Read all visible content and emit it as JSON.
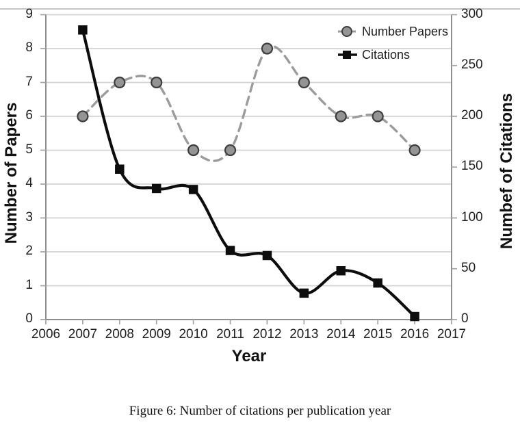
{
  "figure": {
    "caption": "Figure 6: Number of citations per publication year"
  },
  "chart_data": {
    "type": "line",
    "title": "",
    "xlabel": "Year",
    "x": [
      2007,
      2008,
      2009,
      2010,
      2011,
      2012,
      2013,
      2014,
      2015,
      2016
    ],
    "x_ticks": [
      2006,
      2007,
      2008,
      2009,
      2010,
      2011,
      2012,
      2013,
      2014,
      2015,
      2016,
      2017
    ],
    "xlim": [
      2006,
      2017
    ],
    "grid": true,
    "legend": {
      "position": "top-right",
      "items": [
        "Number Papers",
        "Citations"
      ]
    },
    "left_axis": {
      "label": "Number of Papers",
      "lim": [
        0,
        9
      ],
      "ticks": [
        0,
        1,
        2,
        3,
        4,
        5,
        6,
        7,
        8,
        9
      ]
    },
    "right_axis": {
      "label": "Numbef of Citations",
      "lim": [
        0,
        300
      ],
      "ticks": [
        0,
        50,
        100,
        150,
        200,
        250,
        300
      ]
    },
    "series": [
      {
        "name": "Number Papers",
        "axis": "left",
        "line": "dashed",
        "smooth": true,
        "marker": "circle",
        "color": "#9b9b9b",
        "marker_fill": "#949494",
        "marker_stroke": "#3d3d3d",
        "values": [
          6,
          7,
          7,
          5,
          5,
          8,
          7,
          6,
          6,
          5
        ]
      },
      {
        "name": "Citations",
        "axis": "right",
        "line": "solid",
        "smooth": true,
        "marker": "square",
        "color": "#0d0d0d",
        "marker_fill": "#0d0d0d",
        "marker_stroke": "#0d0d0d",
        "values": [
          285,
          148,
          129,
          128,
          68,
          63,
          26,
          48,
          36,
          3
        ]
      }
    ],
    "style": {
      "gridline_color": "#d3d3d3",
      "axis_color": "#8f8f8f",
      "tick_color": "#a3a3a3",
      "tick_label_color": "#1f1f1f",
      "background": "#ffffff"
    }
  }
}
